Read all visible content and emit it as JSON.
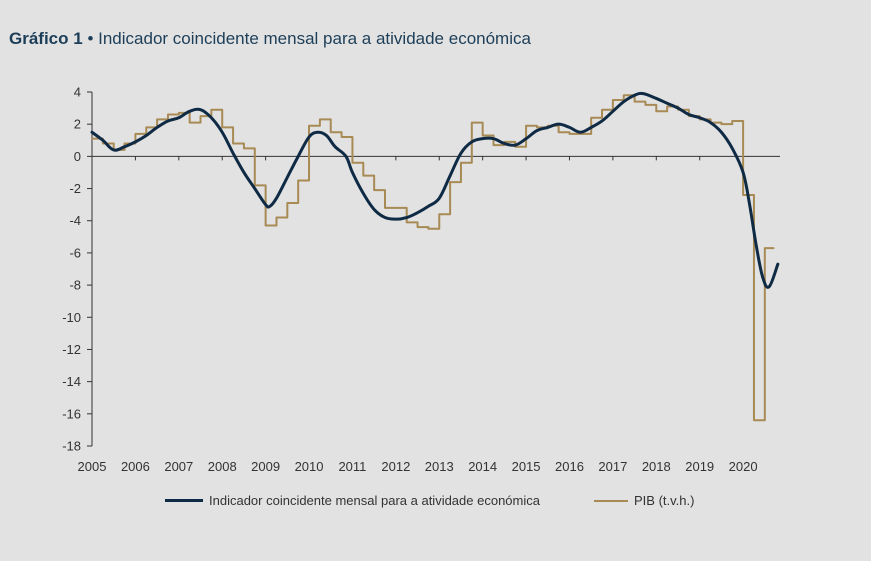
{
  "title": {
    "label": "Gráfico 1",
    "separator": "•",
    "text": "Indicador coincidente mensal para a atividade económica"
  },
  "colors": {
    "indicator": "#0f2a44",
    "gdp": "#a88a55",
    "axis": "#333333",
    "background": "#e2e2e2"
  },
  "chart_data": {
    "type": "line",
    "title": "Indicador coincidente mensal para a atividade económica",
    "xlabel": "",
    "ylabel": "",
    "xlim": [
      2005,
      2020.85
    ],
    "ylim": [
      -18,
      4
    ],
    "y_ticks": [
      4,
      2,
      0,
      -2,
      -4,
      -6,
      -8,
      -10,
      -12,
      -14,
      -16,
      -18
    ],
    "x_ticks": [
      2005,
      2006,
      2007,
      2008,
      2009,
      2010,
      2011,
      2012,
      2013,
      2014,
      2015,
      2016,
      2017,
      2018,
      2019,
      2020
    ],
    "grid": false,
    "legend": "bottom",
    "series": [
      {
        "name": "Indicador coincidente mensal para a atividade económica",
        "style": "smooth",
        "x": [
          2005.0,
          2005.25,
          2005.5,
          2005.75,
          2006.0,
          2006.25,
          2006.5,
          2006.75,
          2007.0,
          2007.25,
          2007.5,
          2007.75,
          2008.0,
          2008.25,
          2008.5,
          2008.75,
          2009.0,
          2009.1,
          2009.25,
          2009.5,
          2009.75,
          2010.0,
          2010.2,
          2010.4,
          2010.6,
          2010.85,
          2011.0,
          2011.25,
          2011.5,
          2011.75,
          2012.0,
          2012.25,
          2012.5,
          2012.75,
          2013.0,
          2013.25,
          2013.5,
          2013.75,
          2014.0,
          2014.25,
          2014.5,
          2014.75,
          2015.0,
          2015.25,
          2015.5,
          2015.75,
          2016.0,
          2016.25,
          2016.5,
          2016.75,
          2017.0,
          2017.25,
          2017.5,
          2017.7,
          2018.0,
          2018.25,
          2018.5,
          2018.75,
          2019.0,
          2019.25,
          2019.5,
          2019.75,
          2020.0,
          2020.15,
          2020.3,
          2020.45,
          2020.6,
          2020.8
        ],
        "values": [
          1.5,
          1.0,
          0.4,
          0.6,
          0.9,
          1.3,
          1.8,
          2.2,
          2.4,
          2.8,
          2.9,
          2.4,
          1.5,
          0.2,
          -1.0,
          -2.0,
          -3.0,
          -3.1,
          -2.6,
          -1.3,
          0.0,
          1.2,
          1.5,
          1.3,
          0.6,
          0.0,
          -1.0,
          -2.3,
          -3.3,
          -3.8,
          -3.9,
          -3.8,
          -3.5,
          -3.1,
          -2.6,
          -1.2,
          0.2,
          0.9,
          1.1,
          1.1,
          0.8,
          0.7,
          1.1,
          1.6,
          1.8,
          2.0,
          1.8,
          1.5,
          1.8,
          2.2,
          2.8,
          3.4,
          3.8,
          3.9,
          3.6,
          3.3,
          3.0,
          2.6,
          2.4,
          2.1,
          1.5,
          0.5,
          -1.0,
          -3.0,
          -5.5,
          -7.5,
          -8.1,
          -6.7
        ]
      },
      {
        "name": "PIB (t.v.h.)",
        "style": "step",
        "x": [
          2005.0,
          2005.25,
          2005.5,
          2005.75,
          2006.0,
          2006.25,
          2006.5,
          2006.75,
          2007.0,
          2007.25,
          2007.5,
          2007.75,
          2008.0,
          2008.25,
          2008.5,
          2008.75,
          2009.0,
          2009.25,
          2009.5,
          2009.75,
          2010.0,
          2010.25,
          2010.5,
          2010.75,
          2011.0,
          2011.25,
          2011.5,
          2011.75,
          2012.0,
          2012.25,
          2012.5,
          2012.75,
          2013.0,
          2013.25,
          2013.5,
          2013.75,
          2014.0,
          2014.25,
          2014.5,
          2014.75,
          2015.0,
          2015.25,
          2015.5,
          2015.75,
          2016.0,
          2016.25,
          2016.5,
          2016.75,
          2017.0,
          2017.25,
          2017.5,
          2017.75,
          2018.0,
          2018.25,
          2018.5,
          2018.75,
          2019.0,
          2019.25,
          2019.5,
          2019.75,
          2020.0,
          2020.25,
          2020.5
        ],
        "values": [
          1.1,
          0.8,
          0.4,
          0.8,
          1.4,
          1.8,
          2.3,
          2.6,
          2.7,
          2.1,
          2.5,
          2.9,
          1.8,
          0.8,
          0.5,
          -1.8,
          -4.3,
          -3.8,
          -2.9,
          -1.5,
          1.9,
          2.3,
          1.5,
          1.2,
          -0.4,
          -1.2,
          -2.1,
          -3.2,
          -3.2,
          -4.1,
          -4.4,
          -4.5,
          -3.6,
          -1.6,
          -0.4,
          2.1,
          1.3,
          0.7,
          0.9,
          0.6,
          1.9,
          1.8,
          1.9,
          1.5,
          1.4,
          1.4,
          2.4,
          2.9,
          3.5,
          3.8,
          3.4,
          3.2,
          2.8,
          3.1,
          2.9,
          2.5,
          2.3,
          2.1,
          2.0,
          2.2,
          -2.4,
          -16.4,
          -5.7
        ]
      }
    ]
  },
  "legend": {
    "items": [
      {
        "label": "Indicador coincidente mensal para a atividade económica"
      },
      {
        "label": "PIB (t.v.h.)"
      }
    ]
  }
}
